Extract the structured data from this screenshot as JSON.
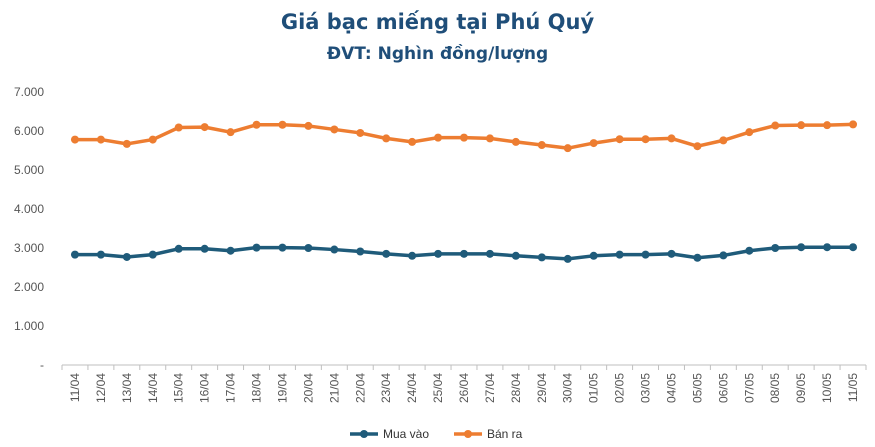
{
  "chart_data": {
    "type": "line",
    "title": "Giá bạc miếng tại Phú Quý",
    "subtitle": "ĐVT: Nghìn đồng/lượng",
    "ylim": [
      0,
      7000
    ],
    "y_ticks": [
      "-",
      "1.000",
      "2.000",
      "3.000",
      "4.000",
      "5.000",
      "6.000",
      "7.000"
    ],
    "grid": false,
    "legend_position": "bottom",
    "categories": [
      "11/04",
      "12/04",
      "13/04",
      "14/04",
      "15/04",
      "16/04",
      "17/04",
      "18/04",
      "19/04",
      "20/04",
      "21/04",
      "22/04",
      "23/04",
      "24/04",
      "25/04",
      "26/04",
      "27/04",
      "28/04",
      "29/04",
      "30/04",
      "01/05",
      "02/05",
      "03/05",
      "04/05",
      "05/05",
      "06/05",
      "07/05",
      "08/05",
      "09/05",
      "10/05",
      "11/05"
    ],
    "series": [
      {
        "name": "Mua vào",
        "color": "#1f5b7a",
        "values": [
          2830,
          2830,
          2770,
          2830,
          2980,
          2980,
          2930,
          3010,
          3010,
          3000,
          2960,
          2910,
          2850,
          2800,
          2850,
          2850,
          2850,
          2800,
          2760,
          2720,
          2800,
          2830,
          2830,
          2850,
          2750,
          2810,
          2930,
          3000,
          3020,
          3020,
          3020
        ]
      },
      {
        "name": "Bán ra",
        "color": "#ed7d31",
        "values": [
          5780,
          5780,
          5670,
          5780,
          6090,
          6100,
          5970,
          6160,
          6160,
          6130,
          6040,
          5950,
          5810,
          5720,
          5830,
          5830,
          5810,
          5720,
          5640,
          5560,
          5690,
          5790,
          5790,
          5810,
          5610,
          5760,
          5970,
          6140,
          6150,
          6150,
          6170
        ]
      }
    ]
  }
}
